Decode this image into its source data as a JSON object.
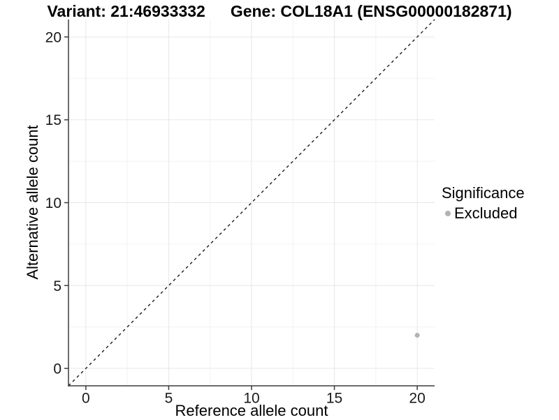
{
  "title": {
    "variant": "Variant: 21:46933332",
    "gene": "Gene: COL18A1 (ENSG00000182871)"
  },
  "legend": {
    "title": "Significance",
    "items": [
      {
        "label": "Excluded",
        "color": "#b3b3b3"
      }
    ]
  },
  "chart_data": {
    "type": "scatter",
    "title": "Variant: 21:46933332    Gene: COL18A1 (ENSG00000182871)",
    "xlabel": "Reference allele count",
    "ylabel": "Alternative allele count",
    "xlim": [
      -1.05,
      21.05
    ],
    "ylim": [
      -1.05,
      21.05
    ],
    "x_ticks": [
      0,
      5,
      10,
      15,
      20
    ],
    "y_ticks": [
      0,
      5,
      10,
      15,
      20
    ],
    "grid": true,
    "legend_position": "right",
    "legend_title": "Significance",
    "series": [
      {
        "name": "Excluded",
        "color": "#b3b3b3",
        "points": [
          {
            "x": 20,
            "y": 2
          }
        ]
      }
    ],
    "reference_line": {
      "slope": 1,
      "intercept": 0,
      "linetype": "dashed",
      "color": "#1a1a1a"
    }
  },
  "colors": {
    "background": "#ffffff",
    "grid_major": "#e7e7e7",
    "grid_minor": "#f2f2f2",
    "axis_line": "#3c3c3c",
    "point": "#b3b3b3",
    "text": "#000000"
  }
}
